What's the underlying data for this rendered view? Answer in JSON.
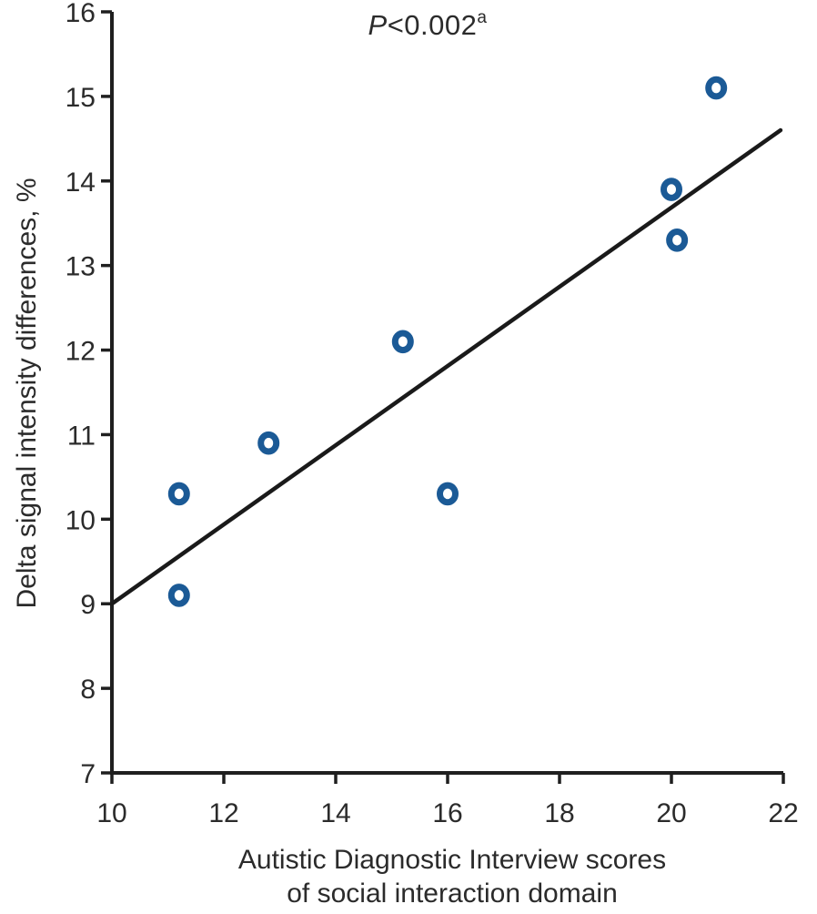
{
  "chart_data": {
    "type": "scatter",
    "title": "",
    "annotation": {
      "prefix_italic": "P",
      "text": "<0.002",
      "superscript": "a"
    },
    "xlabel_line1": "Autistic Diagnostic Interview scores",
    "xlabel_line2": "of social interaction domain",
    "ylabel": "Delta signal intensity differences, %",
    "xlim": [
      10,
      22
    ],
    "ylim": [
      7,
      16
    ],
    "xticks": [
      10,
      12,
      14,
      16,
      18,
      20,
      22
    ],
    "yticks": [
      7,
      8,
      9,
      10,
      11,
      12,
      13,
      14,
      15,
      16
    ],
    "grid": false,
    "legend": null,
    "points": [
      {
        "x": 11.2,
        "y": 10.3
      },
      {
        "x": 11.2,
        "y": 9.1
      },
      {
        "x": 12.8,
        "y": 10.9
      },
      {
        "x": 15.2,
        "y": 12.1
      },
      {
        "x": 16.0,
        "y": 10.3
      },
      {
        "x": 20.0,
        "y": 13.9
      },
      {
        "x": 20.1,
        "y": 13.3
      },
      {
        "x": 20.8,
        "y": 15.1
      }
    ],
    "trendline": {
      "x1": 10.0,
      "y1": 9.0,
      "x2": 21.95,
      "y2": 14.6
    },
    "colors": {
      "marker": "#1b5a96",
      "line": "#1a1a1a",
      "axis": "#1f1f1f",
      "text": "#2b2b2b"
    }
  }
}
